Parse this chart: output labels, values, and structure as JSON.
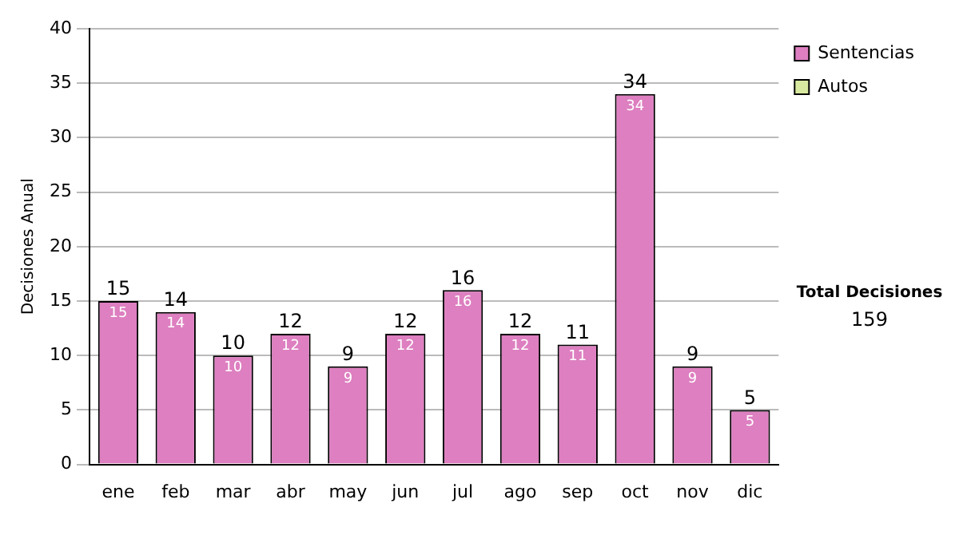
{
  "chart_data": {
    "type": "bar",
    "ylabel": "Decisiones Anual",
    "categories": [
      "ene",
      "feb",
      "mar",
      "abr",
      "may",
      "jun",
      "jul",
      "ago",
      "sep",
      "oct",
      "nov",
      "dic"
    ],
    "stacked": true,
    "series": [
      {
        "name": "Sentencias",
        "color": "#dd7fc0",
        "values": [
          15,
          14,
          10,
          12,
          9,
          12,
          16,
          12,
          11,
          34,
          9,
          5
        ],
        "value_labels": [
          "15",
          "14",
          "10",
          "12",
          "9",
          "12",
          "16",
          "12",
          "11",
          "34",
          "9",
          "5"
        ]
      },
      {
        "name": "Autos",
        "color": "#d8eaa0",
        "values": [
          0,
          0,
          0,
          0,
          0,
          0,
          0,
          0,
          0,
          0,
          0,
          0
        ]
      }
    ],
    "totals": [
      "15",
      "14",
      "10",
      "12",
      "9",
      "12",
      "16",
      "12",
      "11",
      "34",
      "9",
      "5"
    ],
    "ylim": [
      0,
      40
    ],
    "yticks": [
      0,
      5,
      10,
      15,
      20,
      25,
      30,
      35,
      40
    ],
    "grid": "y",
    "legend": "right",
    "annotations": [
      "Total Decisiones",
      "159"
    ]
  }
}
